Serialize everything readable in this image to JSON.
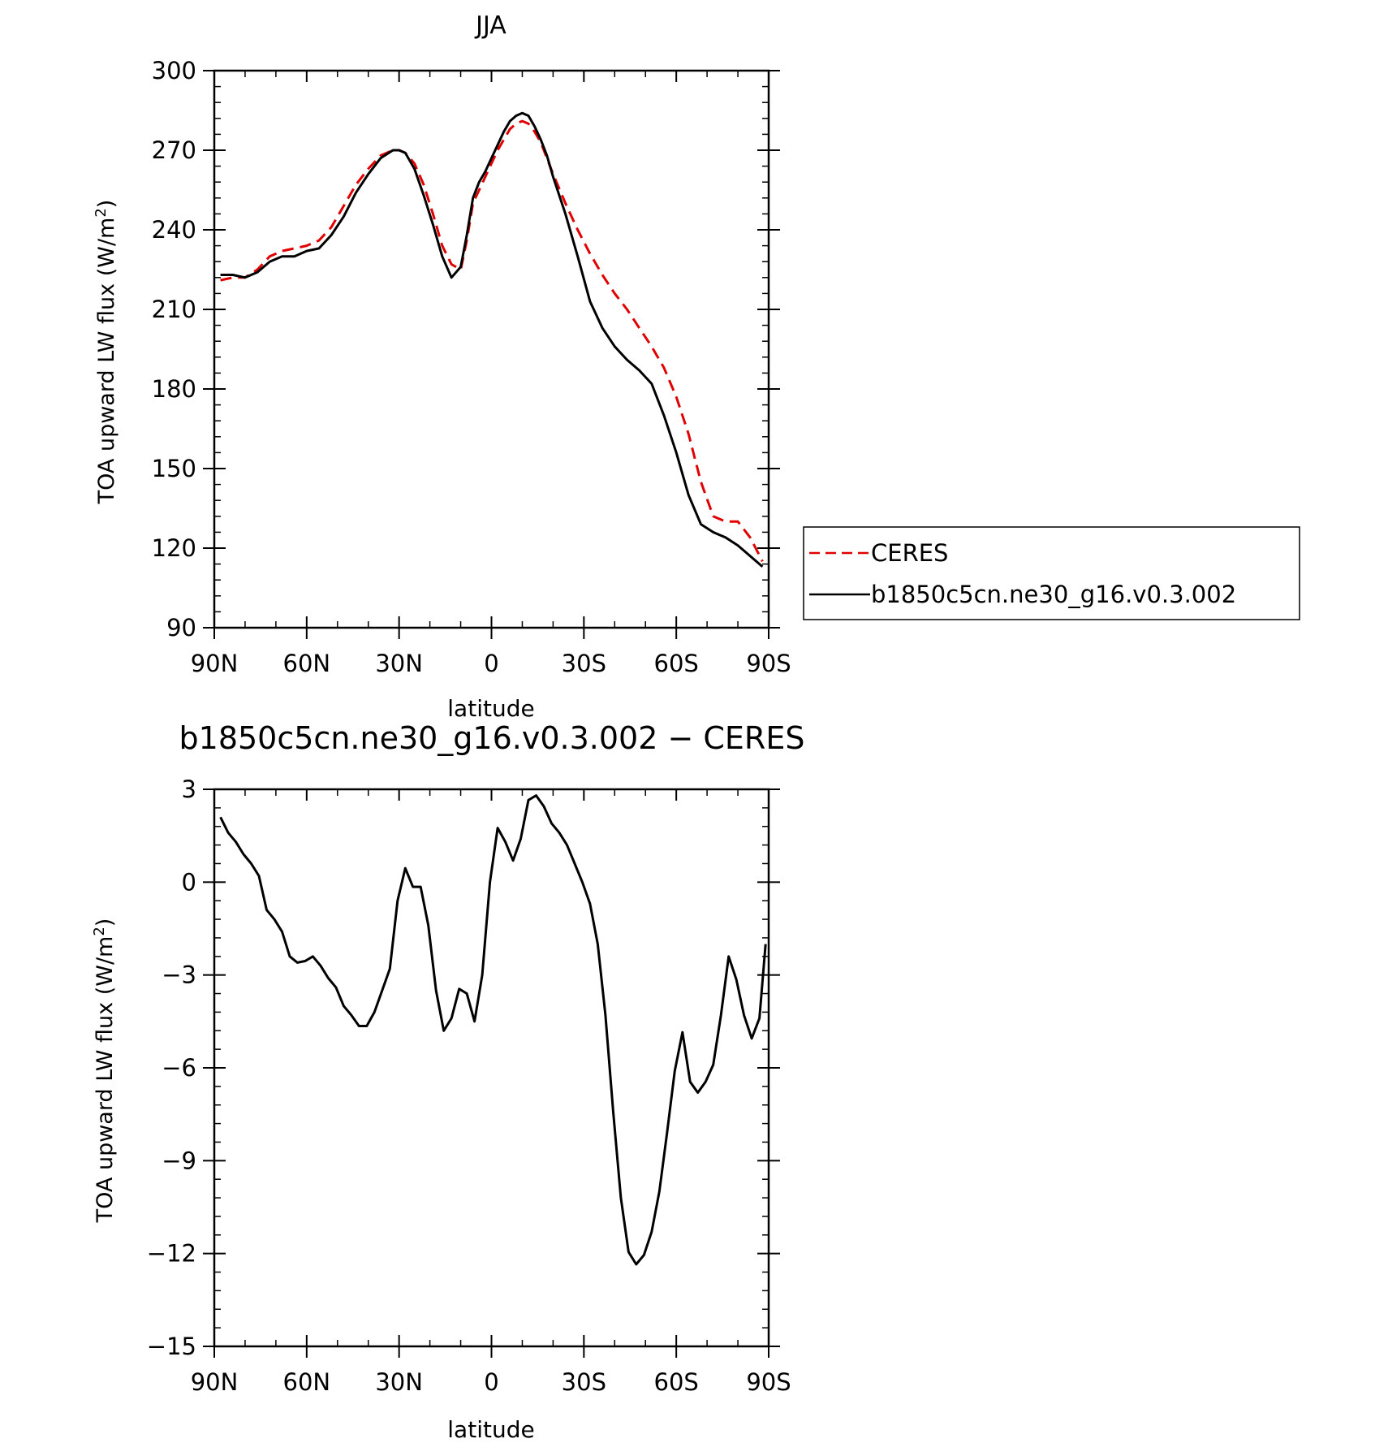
{
  "chart_data": [
    {
      "type": "line",
      "title": "JJA",
      "xlabel": "latitude",
      "ylabel": "TOA upward LW flux (W/m²)",
      "xlim": [
        90,
        -90
      ],
      "ylim": [
        90,
        300
      ],
      "x_ticks": [
        90,
        60,
        30,
        0,
        -30,
        -60,
        -90
      ],
      "x_tick_labels": [
        "90N",
        "60N",
        "30N",
        "0",
        "30S",
        "60S",
        "90S"
      ],
      "y_ticks": [
        90,
        120,
        150,
        180,
        210,
        240,
        270,
        300
      ],
      "y_tick_labels": [
        "90",
        "120",
        "150",
        "180",
        "210",
        "240",
        "270",
        "300"
      ],
      "legend": "right",
      "grid": false,
      "x": [
        88,
        84,
        80,
        76,
        72,
        68,
        64,
        60,
        56,
        52,
        48,
        44,
        40,
        36,
        32,
        30,
        28,
        25,
        22,
        19,
        16,
        13,
        10,
        8,
        6,
        4,
        2,
        0,
        -2,
        -4,
        -6,
        -8,
        -10,
        -12,
        -14,
        -16,
        -18,
        -20,
        -24,
        -28,
        -32,
        -36,
        -40,
        -44,
        -48,
        -52,
        -56,
        -60,
        -64,
        -68,
        -72,
        -76,
        -80,
        -84,
        -88
      ],
      "series": [
        {
          "name": "CERES",
          "color": "#e00000",
          "dash": "dashed",
          "values": [
            221,
            222,
            222,
            225,
            230,
            232,
            233,
            234,
            236,
            241,
            249,
            257,
            263,
            268,
            270,
            270,
            269,
            265,
            257,
            246,
            234,
            227,
            225,
            236,
            250,
            255,
            260,
            265,
            270,
            274,
            278,
            280,
            281,
            280,
            277,
            273,
            267,
            261,
            250,
            240,
            231,
            223,
            216,
            210,
            203,
            196,
            188,
            177,
            163,
            145,
            132,
            130,
            130,
            124,
            115
          ]
        },
        {
          "name": "b1850c5cn.ne30_g16.v0.3.002",
          "color": "#000000",
          "dash": "solid",
          "values": [
            223,
            223,
            222,
            224,
            228,
            230,
            230,
            232,
            233,
            238,
            245,
            254,
            261,
            267,
            270,
            270,
            269,
            263,
            253,
            242,
            230,
            222,
            226,
            238,
            252,
            258,
            262,
            267,
            272,
            277,
            281,
            283,
            284,
            283,
            279,
            274,
            268,
            260,
            246,
            230,
            213,
            203,
            196,
            191,
            187,
            182,
            170,
            156,
            140,
            129,
            126,
            124,
            121,
            117,
            113
          ]
        }
      ]
    },
    {
      "type": "line",
      "title": "b1850c5cn.ne30_g16.v0.3.002 − CERES",
      "xlabel": "latitude",
      "ylabel": "TOA upward LW flux (W/m²)",
      "xlim": [
        90,
        -90
      ],
      "ylim": [
        -15,
        3
      ],
      "x_ticks": [
        90,
        60,
        30,
        0,
        -30,
        -60,
        -90
      ],
      "x_tick_labels": [
        "90N",
        "60N",
        "30N",
        "0",
        "30S",
        "60S",
        "90S"
      ],
      "y_ticks": [
        3,
        0,
        -3,
        -6,
        -9,
        -12,
        -15
      ],
      "y_tick_labels": [
        "3",
        "0",
        "−3",
        "−6",
        "−9",
        "−12",
        "−15"
      ],
      "grid": false,
      "series": [
        {
          "color": "#000000",
          "dash": "solid",
          "x": [
            88,
            85.5,
            83,
            80.5,
            78,
            75.5,
            73,
            70.5,
            68,
            65.5,
            63,
            60.5,
            58,
            55.5,
            53,
            50.5,
            48,
            45.5,
            43,
            40.5,
            38,
            35.5,
            33,
            30.5,
            28,
            25.5,
            23,
            20.5,
            18,
            15.5,
            13,
            10.5,
            8,
            5.5,
            3,
            0.5,
            -2,
            -4.5,
            -7,
            -9.5,
            -12,
            -14.5,
            -17,
            -19.5,
            -22,
            -24.5,
            -27,
            -29.5,
            -32,
            -34.5,
            -37,
            -39.5,
            -42,
            -44.5,
            -47,
            -49.5,
            -52,
            -54.5,
            -57,
            -59.5,
            -62,
            -64.5,
            -67,
            -69.5,
            -72,
            -74.5,
            -77,
            -79.5,
            -82,
            -84.5,
            -87,
            -89
          ],
          "values": [
            2.1,
            1.6,
            1.3,
            0.9,
            0.6,
            0.2,
            -0.9,
            -1.2,
            -1.6,
            -2.4,
            -2.6,
            -2.55,
            -2.4,
            -2.7,
            -3.1,
            -3.4,
            -4.0,
            -4.3,
            -4.65,
            -4.65,
            -4.2,
            -3.5,
            -2.8,
            -0.6,
            0.45,
            -0.15,
            -0.15,
            -1.4,
            -3.5,
            -4.8,
            -4.4,
            -3.45,
            -3.6,
            -4.5,
            -3.0,
            0.0,
            1.75,
            1.3,
            0.7,
            1.4,
            2.65,
            2.8,
            2.45,
            1.9,
            1.6,
            1.2,
            0.6,
            -0.0,
            -0.7,
            -2.0,
            -4.3,
            -7.4,
            -10.2,
            -11.95,
            -12.35,
            -12.05,
            -11.3,
            -10.0,
            -8.1,
            -6.1,
            -4.85,
            -6.45,
            -6.8,
            -6.45,
            -5.9,
            -4.3,
            -2.4,
            -3.15,
            -4.3,
            -5.05,
            -4.4,
            -2.0
          ]
        }
      ]
    }
  ]
}
